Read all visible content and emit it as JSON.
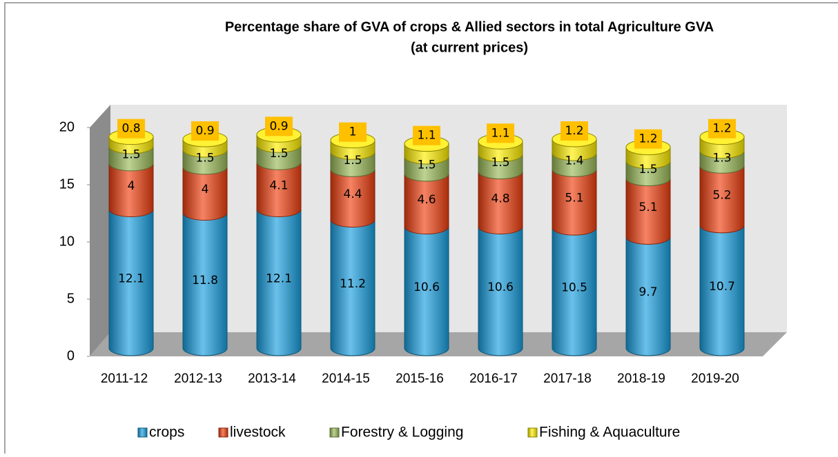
{
  "chart_data": {
    "type": "stacked-cylinder",
    "title": "Percentage share of GVA of crops & Allied sectors in total Agriculture GVA",
    "subtitle": "(at current prices)",
    "categories": [
      "2011-12",
      "2012-13",
      "2013-14",
      "2014-15",
      "2015-16",
      "2016-17",
      "2017-18",
      "2018-19",
      "2019-20"
    ],
    "series": [
      {
        "name": "crops",
        "color": "#1aa0e0",
        "values": [
          12.1,
          11.8,
          12.1,
          11.2,
          10.6,
          10.6,
          10.5,
          9.7,
          10.7
        ]
      },
      {
        "name": "livestock",
        "color": "#f04010",
        "values": [
          4,
          4,
          4.1,
          4.4,
          4.6,
          4.8,
          5.1,
          5.1,
          5.2
        ]
      },
      {
        "name": "Forestry & Logging",
        "color": "#9bbb59",
        "values": [
          1.5,
          1.5,
          1.5,
          1.5,
          1.5,
          1.5,
          1.4,
          1.5,
          1.3
        ]
      },
      {
        "name": "Fishing & Aquaculture",
        "color": "#ffee00",
        "values": [
          0.8,
          0.9,
          0.9,
          1,
          1.1,
          1.1,
          1.2,
          1.2,
          1.2
        ]
      }
    ],
    "ylim": [
      0,
      20
    ],
    "yticks": [
      0,
      5,
      10,
      15,
      20
    ],
    "legend": "bottom"
  }
}
